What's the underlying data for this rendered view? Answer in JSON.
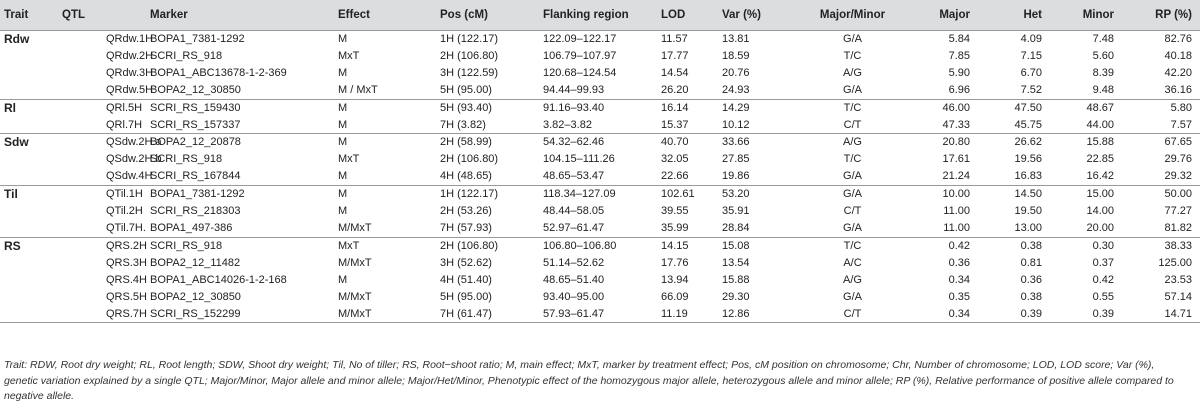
{
  "headers": [
    "Trait",
    "QTL",
    "Marker",
    "Effect",
    "Pos (cM)",
    "Flanking region",
    "LOD",
    "Var (%)",
    "Major/Minor",
    "Major",
    "Het",
    "Minor",
    "RP (%)"
  ],
  "rows": [
    [
      "Rdw",
      "QRdw.1H",
      "BOPA1_7381-1292",
      "M",
      "1H (122.17)",
      "122.09–122.17",
      "11.57",
      "13.81",
      "G/A",
      "5.84",
      "4.09",
      "7.48",
      "82.76"
    ],
    [
      "",
      "QRdw.2H",
      "SCRI_RS_918",
      "MxT",
      "2H (106.80)",
      "106.79–107.97",
      "17.77",
      "18.59",
      "T/C",
      "7.85",
      "7.15",
      "5.60",
      "40.18"
    ],
    [
      "",
      "QRdw.3H",
      "BOPA1_ABC13678-1-2-369",
      "M",
      "3H (122.59)",
      "120.68–124.54",
      "14.54",
      "20.76",
      "A/G",
      "5.90",
      "6.70",
      "8.39",
      "42.20"
    ],
    [
      "",
      "QRdw.5H",
      "BOPA2_12_30850",
      "M / MxT",
      "5H (95.00)",
      "94.44–99.93",
      "26.20",
      "24.93",
      "G/A",
      "6.96",
      "7.52",
      "9.48",
      "36.16"
    ],
    [
      "Rl",
      "QRl.5H",
      "SCRI_RS_159430",
      "M",
      "5H (93.40)",
      "91.16–93.40",
      "16.14",
      "14.29",
      "T/C",
      "46.00",
      "47.50",
      "48.67",
      "5.80"
    ],
    [
      "",
      "QRl.7H",
      "SCRI_RS_157337",
      "M",
      "7H (3.82)",
      "3.82–3.82",
      "15.37",
      "10.12",
      "C/T",
      "47.33",
      "45.75",
      "44.00",
      "7.57"
    ],
    [
      "Sdw",
      "QSdw.2H.a",
      "BOPA2_12_20878",
      "M",
      "2H (58.99)",
      "54.32–62.46",
      "40.70",
      "33.66",
      "A/G",
      "20.80",
      "26.62",
      "15.88",
      "67.65"
    ],
    [
      "",
      "QSdw.2H.b",
      "SCRI_RS_918",
      "MxT",
      "2H (106.80)",
      "104.15–111.26",
      "32.05",
      "27.85",
      "T/C",
      "17.61",
      "19.56",
      "22.85",
      "29.76"
    ],
    [
      "",
      "QSdw.4H",
      "SCRI_RS_167844",
      "M",
      "4H (48.65)",
      "48.65–53.47",
      "22.66",
      "19.86",
      "G/A",
      "21.24",
      "16.83",
      "16.42",
      "29.32"
    ],
    [
      "Til",
      "QTil.1H",
      "BOPA1_7381-1292",
      "M",
      "1H (122.17)",
      "118.34–127.09",
      "102.61",
      "53.20",
      "G/A",
      "10.00",
      "14.50",
      "15.00",
      "50.00"
    ],
    [
      "",
      "QTil.2H",
      "SCRI_RS_218303",
      "M",
      "2H (53.26)",
      "48.44–58.05",
      "39.55",
      "35.91",
      "C/T",
      "11.00",
      "19.50",
      "14.00",
      "77.27"
    ],
    [
      "",
      "QTil.7H.",
      "BOPA1_497-386",
      "M/MxT",
      "7H (57.93)",
      "52.97–61.47",
      "35.99",
      "28.84",
      "G/A",
      "11.00",
      "13.00",
      "20.00",
      "81.82"
    ],
    [
      "RS",
      "QRS.2H",
      "SCRI_RS_918",
      "MxT",
      "2H (106.80)",
      "106.80–106.80",
      "14.15",
      "15.08",
      "T/C",
      "0.42",
      "0.38",
      "0.30",
      "38.33"
    ],
    [
      "",
      "QRS.3H",
      "BOPA2_12_11482",
      "M/MxT",
      "3H (52.62)",
      "51.14–52.62",
      "17.76",
      "13.54",
      "A/C",
      "0.36",
      "0.81",
      "0.37",
      "125.00"
    ],
    [
      "",
      "QRS.4H",
      "BOPA1_ABC14026-1-2-168",
      "M",
      "4H (51.40)",
      "48.65–51.40",
      "13.94",
      "15.88",
      "A/G",
      "0.34",
      "0.36",
      "0.42",
      "23.53"
    ],
    [
      "",
      "QRS.5H",
      "BOPA2_12_30850",
      "M/MxT",
      "5H (95.00)",
      "93.40–95.00",
      "66.09",
      "29.30",
      "G/A",
      "0.35",
      "0.38",
      "0.55",
      "57.14"
    ],
    [
      "",
      "QRS.7H",
      "SCRI_RS_152299",
      "M/MxT",
      "7H (61.47)",
      "57.93–61.47",
      "11.19",
      "12.86",
      "C/T",
      "0.34",
      "0.39",
      "0.39",
      "14.71"
    ]
  ],
  "footnote": "Trait: RDW, Root dry weight; RL, Root length; SDW, Shoot dry weight; Til, No of tiller; RS, Root−shoot ratio; M, main effect; MxT, marker by treatment effect; Pos, cM position on chromosome; Chr, Number of chromosome; LOD, LOD score; Var (%), genetic variation explained by a single QTL; Major/Minor, Major allele and minor allele; Major/Het/Minor, Phenotypic effect of the homozygous major allele, heterozygous allele and minor allele; RP (%), Relative performance of positive allele compared to negative allele."
}
